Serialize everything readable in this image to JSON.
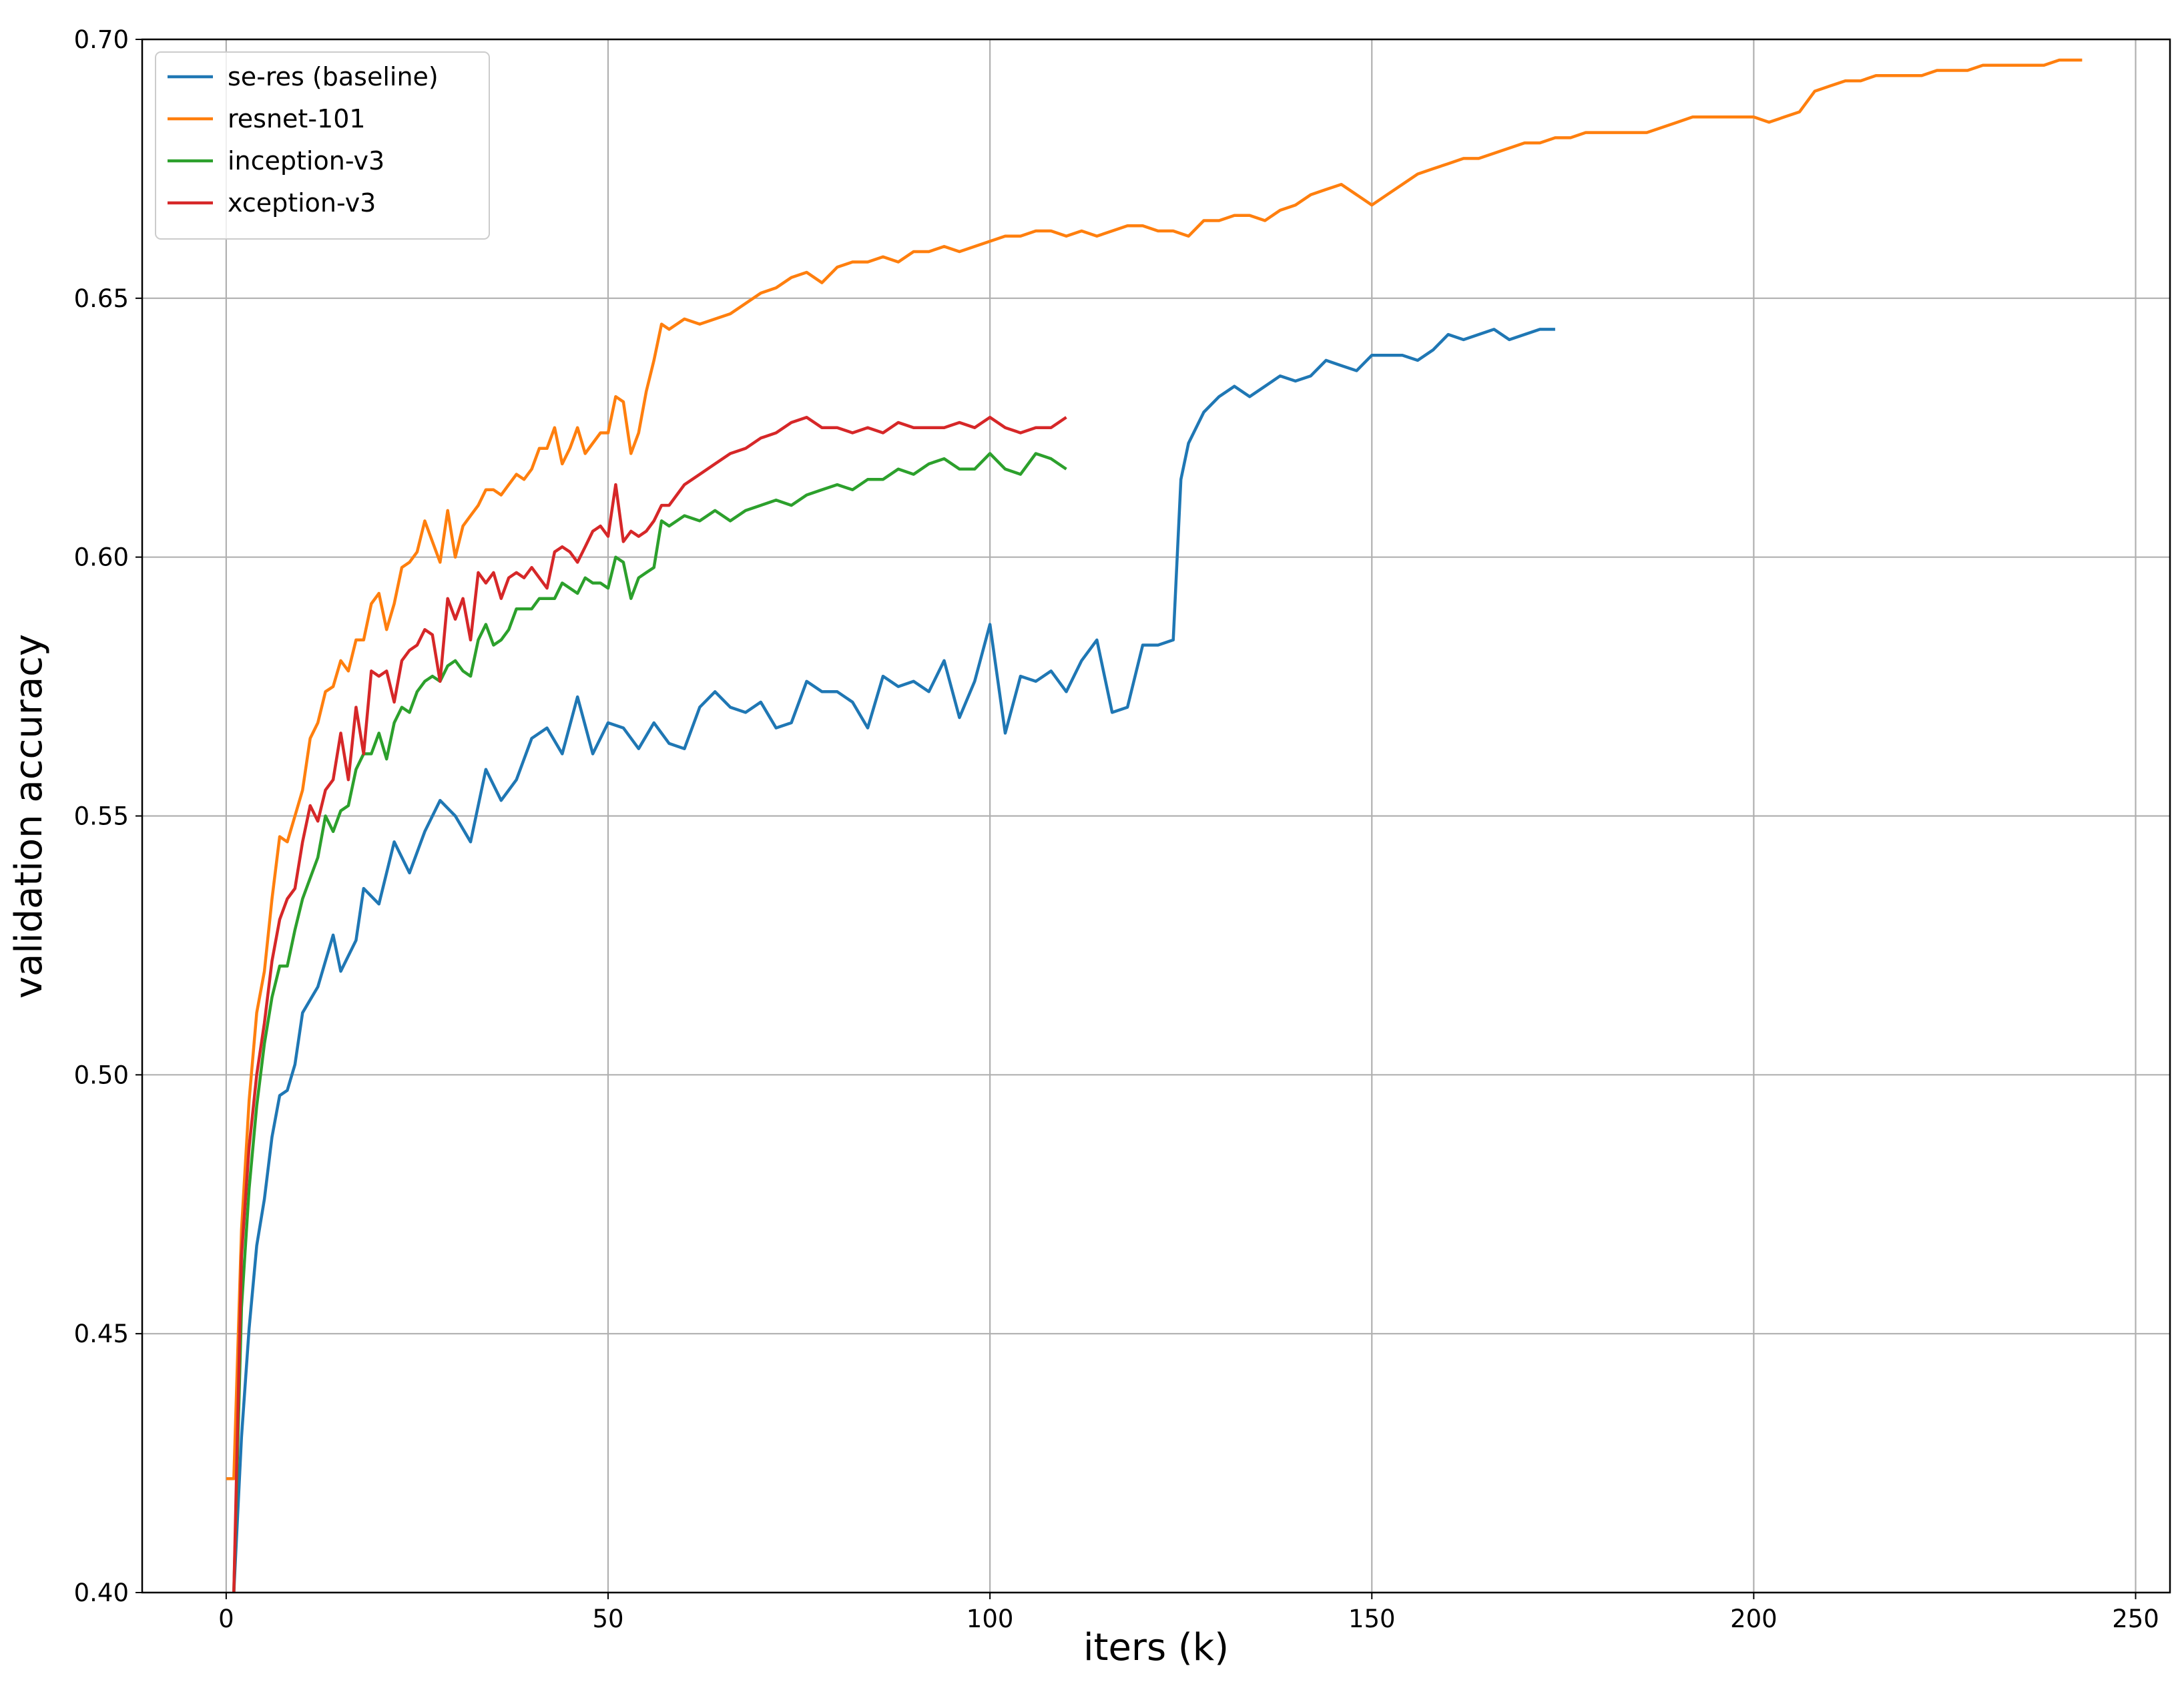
{
  "chart_data": {
    "type": "line",
    "xlabel": "iters (k)",
    "ylabel": "validation accuracy",
    "xlim": [
      -11,
      254.5
    ],
    "ylim": [
      0.4,
      0.7
    ],
    "xticks": [
      0,
      50,
      100,
      150,
      200,
      250
    ],
    "yticks": [
      0.4,
      0.45,
      0.5,
      0.55,
      0.6,
      0.65,
      0.7
    ],
    "ytick_labels": [
      "0.40",
      "0.45",
      "0.50",
      "0.55",
      "0.60",
      "0.65",
      "0.70"
    ],
    "grid": true,
    "legend": "upper-left",
    "series": [
      {
        "name": "se-res (baseline)",
        "color": "#1f77b4",
        "x": [
          1,
          2,
          3,
          4,
          5,
          6,
          7,
          8,
          9,
          10,
          12,
          14,
          15,
          17,
          18,
          20,
          22,
          24,
          26,
          28,
          30,
          32,
          34,
          36,
          38,
          40,
          42,
          44,
          46,
          48,
          50,
          52,
          54,
          56,
          58,
          60,
          62,
          64,
          66,
          68,
          70,
          72,
          74,
          76,
          78,
          80,
          82,
          84,
          86,
          88,
          90,
          92,
          94,
          96,
          98,
          100,
          102,
          104,
          106,
          108,
          110,
          112,
          114,
          116,
          118,
          120,
          122,
          124,
          125,
          126,
          128,
          130,
          132,
          134,
          136,
          138,
          140,
          142,
          144,
          146,
          148,
          150,
          152,
          154,
          156,
          158,
          160,
          162,
          164,
          166,
          168,
          170,
          172,
          174
        ],
        "values": [
          0.4,
          0.43,
          0.451,
          0.467,
          0.476,
          0.488,
          0.496,
          0.497,
          0.502,
          0.512,
          0.517,
          0.527,
          0.52,
          0.526,
          0.536,
          0.533,
          0.545,
          0.539,
          0.547,
          0.553,
          0.55,
          0.545,
          0.559,
          0.553,
          0.557,
          0.565,
          0.567,
          0.562,
          0.573,
          0.562,
          0.568,
          0.567,
          0.563,
          0.568,
          0.564,
          0.563,
          0.571,
          0.574,
          0.571,
          0.57,
          0.572,
          0.567,
          0.568,
          0.576,
          0.574,
          0.574,
          0.572,
          0.567,
          0.577,
          0.575,
          0.576,
          0.574,
          0.58,
          0.569,
          0.576,
          0.587,
          0.566,
          0.577,
          0.576,
          0.578,
          0.574,
          0.58,
          0.584,
          0.57,
          0.571,
          0.583,
          0.583,
          0.584,
          0.615,
          0.622,
          0.628,
          0.631,
          0.633,
          0.631,
          0.633,
          0.635,
          0.634,
          0.635,
          0.638,
          0.637,
          0.636,
          0.639,
          0.639,
          0.639,
          0.638,
          0.64,
          0.643,
          0.642,
          0.643,
          0.644,
          0.642,
          0.643,
          0.644,
          0.644
        ]
      },
      {
        "name": "resnet-101",
        "color": "#ff7f0e",
        "x": [
          0,
          1,
          2,
          3,
          4,
          5,
          6,
          7,
          8,
          9,
          10,
          11,
          12,
          13,
          14,
          15,
          16,
          17,
          18,
          19,
          20,
          21,
          22,
          23,
          24,
          25,
          26,
          27,
          28,
          29,
          30,
          31,
          32,
          33,
          34,
          35,
          36,
          37,
          38,
          39,
          40,
          41,
          42,
          43,
          44,
          45,
          46,
          47,
          48,
          49,
          50,
          51,
          52,
          53,
          54,
          55,
          56,
          57,
          58,
          60,
          62,
          64,
          66,
          68,
          70,
          72,
          74,
          76,
          78,
          80,
          82,
          84,
          86,
          88,
          90,
          92,
          94,
          96,
          98,
          100,
          102,
          104,
          106,
          108,
          110,
          112,
          114,
          116,
          118,
          120,
          122,
          124,
          126,
          128,
          130,
          132,
          134,
          136,
          138,
          140,
          142,
          144,
          146,
          148,
          150,
          152,
          154,
          156,
          158,
          160,
          162,
          164,
          166,
          168,
          170,
          172,
          174,
          176,
          178,
          180,
          182,
          184,
          186,
          188,
          190,
          192,
          194,
          196,
          198,
          200,
          202,
          204,
          206,
          208,
          210,
          212,
          214,
          216,
          218,
          220,
          222,
          224,
          226,
          228,
          230,
          232,
          234,
          236,
          238,
          240,
          242,
          243
        ],
        "values": [
          0.422,
          0.422,
          0.47,
          0.495,
          0.512,
          0.52,
          0.534,
          0.546,
          0.545,
          0.55,
          0.555,
          0.565,
          0.568,
          0.574,
          0.575,
          0.58,
          0.578,
          0.584,
          0.584,
          0.591,
          0.593,
          0.586,
          0.591,
          0.598,
          0.599,
          0.601,
          0.607,
          0.603,
          0.599,
          0.609,
          0.6,
          0.606,
          0.608,
          0.61,
          0.613,
          0.613,
          0.612,
          0.614,
          0.616,
          0.615,
          0.617,
          0.621,
          0.621,
          0.625,
          0.618,
          0.621,
          0.625,
          0.62,
          0.622,
          0.624,
          0.624,
          0.631,
          0.63,
          0.62,
          0.624,
          0.632,
          0.638,
          0.645,
          0.644,
          0.646,
          0.645,
          0.646,
          0.647,
          0.649,
          0.651,
          0.652,
          0.654,
          0.655,
          0.653,
          0.656,
          0.657,
          0.657,
          0.658,
          0.657,
          0.659,
          0.659,
          0.66,
          0.659,
          0.66,
          0.661,
          0.662,
          0.662,
          0.663,
          0.663,
          0.662,
          0.663,
          0.662,
          0.663,
          0.664,
          0.664,
          0.663,
          0.663,
          0.662,
          0.665,
          0.665,
          0.666,
          0.666,
          0.665,
          0.667,
          0.668,
          0.67,
          0.671,
          0.672,
          0.67,
          0.668,
          0.67,
          0.672,
          0.674,
          0.675,
          0.676,
          0.677,
          0.677,
          0.678,
          0.679,
          0.68,
          0.68,
          0.681,
          0.681,
          0.682,
          0.682,
          0.682,
          0.682,
          0.682,
          0.683,
          0.684,
          0.685,
          0.685,
          0.685,
          0.685,
          0.685,
          0.684,
          0.685,
          0.686,
          0.69,
          0.691,
          0.692,
          0.692,
          0.693,
          0.693,
          0.693,
          0.693,
          0.694,
          0.694,
          0.694,
          0.695,
          0.695,
          0.695,
          0.695,
          0.695,
          0.696,
          0.696,
          0.696
        ]
      },
      {
        "name": "inception-v3",
        "color": "#2ca02c",
        "x": [
          1,
          2,
          3,
          4,
          5,
          6,
          7,
          8,
          9,
          10,
          11,
          12,
          13,
          14,
          15,
          16,
          17,
          18,
          19,
          20,
          21,
          22,
          23,
          24,
          25,
          26,
          27,
          28,
          29,
          30,
          31,
          32,
          33,
          34,
          35,
          36,
          37,
          38,
          39,
          40,
          41,
          42,
          43,
          44,
          45,
          46,
          47,
          48,
          49,
          50,
          51,
          52,
          53,
          54,
          55,
          56,
          57,
          58,
          60,
          62,
          64,
          66,
          68,
          70,
          72,
          74,
          76,
          78,
          80,
          82,
          84,
          86,
          88,
          90,
          92,
          94,
          96,
          98,
          100,
          102,
          104,
          106,
          108,
          110
        ],
        "values": [
          0.4,
          0.455,
          0.478,
          0.494,
          0.506,
          0.515,
          0.521,
          0.521,
          0.528,
          0.534,
          0.538,
          0.542,
          0.55,
          0.547,
          0.551,
          0.552,
          0.559,
          0.562,
          0.562,
          0.566,
          0.561,
          0.568,
          0.571,
          0.57,
          0.574,
          0.576,
          0.577,
          0.576,
          0.579,
          0.58,
          0.578,
          0.577,
          0.584,
          0.587,
          0.583,
          0.584,
          0.586,
          0.59,
          0.59,
          0.59,
          0.592,
          0.592,
          0.592,
          0.595,
          0.594,
          0.593,
          0.596,
          0.595,
          0.595,
          0.594,
          0.6,
          0.599,
          0.592,
          0.596,
          0.597,
          0.598,
          0.607,
          0.606,
          0.608,
          0.607,
          0.609,
          0.607,
          0.609,
          0.61,
          0.611,
          0.61,
          0.612,
          0.613,
          0.614,
          0.613,
          0.615,
          0.615,
          0.617,
          0.616,
          0.618,
          0.619,
          0.617,
          0.617,
          0.62,
          0.617,
          0.616,
          0.62,
          0.619,
          0.617
        ]
      },
      {
        "name": "xception-v3",
        "color": "#d62728",
        "x": [
          1,
          2,
          3,
          4,
          5,
          6,
          7,
          8,
          9,
          10,
          11,
          12,
          13,
          14,
          15,
          16,
          17,
          18,
          19,
          20,
          21,
          22,
          23,
          24,
          25,
          26,
          27,
          28,
          29,
          30,
          31,
          32,
          33,
          34,
          35,
          36,
          37,
          38,
          39,
          40,
          41,
          42,
          43,
          44,
          45,
          46,
          47,
          48,
          49,
          50,
          51,
          52,
          53,
          54,
          55,
          56,
          57,
          58,
          60,
          62,
          64,
          66,
          68,
          70,
          72,
          74,
          76,
          78,
          80,
          82,
          84,
          86,
          88,
          90,
          92,
          94,
          96,
          98,
          100,
          102,
          104,
          106,
          108,
          110
        ],
        "values": [
          0.4,
          0.465,
          0.486,
          0.5,
          0.51,
          0.522,
          0.53,
          0.534,
          0.536,
          0.545,
          0.552,
          0.549,
          0.555,
          0.557,
          0.566,
          0.557,
          0.571,
          0.562,
          0.578,
          0.577,
          0.578,
          0.572,
          0.58,
          0.582,
          0.583,
          0.586,
          0.585,
          0.576,
          0.592,
          0.588,
          0.592,
          0.584,
          0.597,
          0.595,
          0.597,
          0.592,
          0.596,
          0.597,
          0.596,
          0.598,
          0.596,
          0.594,
          0.601,
          0.602,
          0.601,
          0.599,
          0.602,
          0.605,
          0.606,
          0.604,
          0.614,
          0.603,
          0.605,
          0.604,
          0.605,
          0.607,
          0.61,
          0.61,
          0.614,
          0.616,
          0.618,
          0.62,
          0.621,
          0.623,
          0.624,
          0.626,
          0.627,
          0.625,
          0.625,
          0.624,
          0.625,
          0.624,
          0.626,
          0.625,
          0.625,
          0.625,
          0.626,
          0.625,
          0.627,
          0.625,
          0.624,
          0.625,
          0.625,
          0.627
        ]
      }
    ]
  }
}
